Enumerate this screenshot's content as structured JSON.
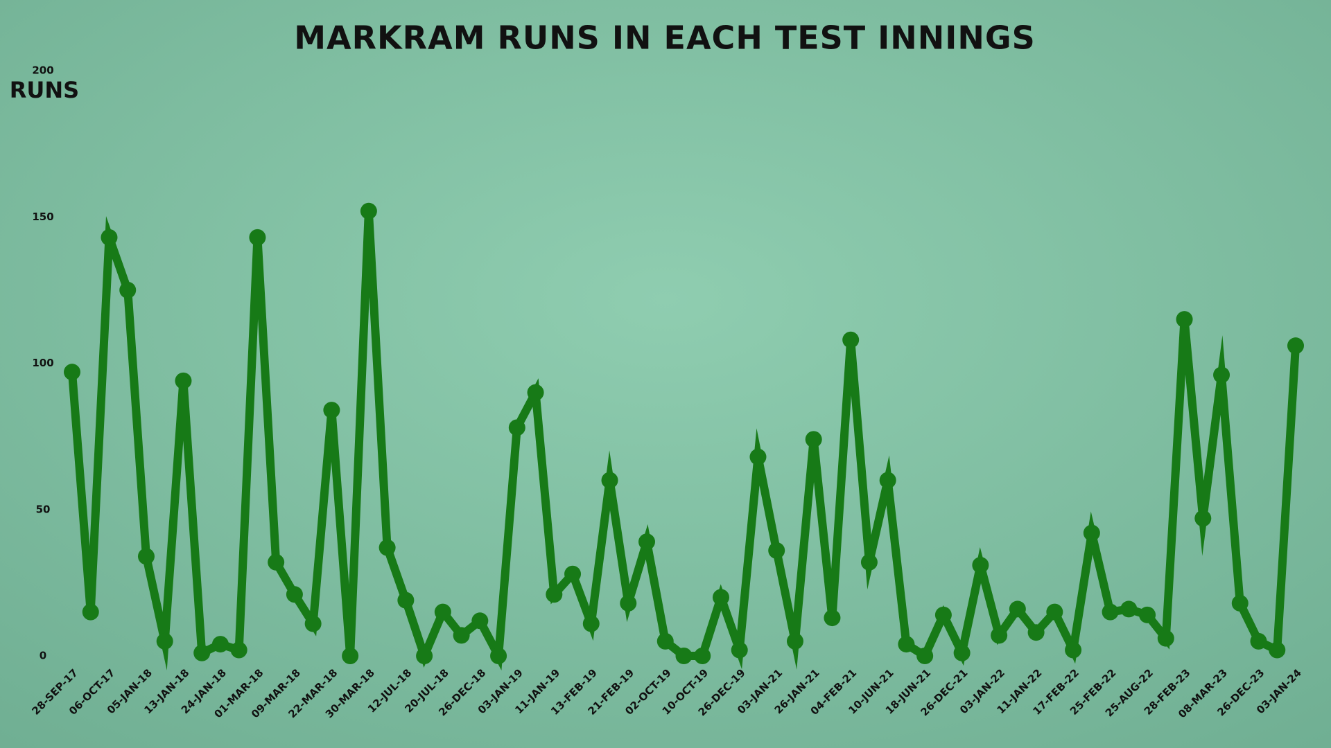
{
  "chart_data": {
    "type": "line",
    "title": "MARKRAM RUNS IN EACH TEST  INNINGS",
    "y_label": "RUNS",
    "categories": [
      "28-SEP-17",
      null,
      "06-OCT-17",
      null,
      "05-JAN-18",
      null,
      "13-JAN-18",
      null,
      "24-JAN-18",
      null,
      "01-MAR-18",
      null,
      "09-MAR-18",
      null,
      "22-MAR-18",
      null,
      "30-MAR-18",
      null,
      "12-JUL-18",
      null,
      "20-JUL-18",
      null,
      "26-DEC-18",
      null,
      "03-JAN-19",
      null,
      "11-JAN-19",
      null,
      "13-FEB-19",
      null,
      "21-FEB-19",
      null,
      "02-OCT-19",
      null,
      "10-OCT-19",
      null,
      "26-DEC-19",
      null,
      "03-JAN-21",
      null,
      "26-JAN-21",
      null,
      "04-FEB-21",
      null,
      "10-JUN-21",
      null,
      "18-JUN-21",
      null,
      "26-DEC-21",
      null,
      "03-JAN-22",
      null,
      "11-JAN-22",
      null,
      "17-FEB-22",
      null,
      "25-FEB-22",
      null,
      "25-AUG-22",
      null,
      "28-FEB-23",
      null,
      "08-MAR-23",
      null,
      "26-DEC-23",
      null,
      "03-JAN-24"
    ],
    "values": [
      97,
      15,
      143,
      125,
      34,
      5,
      94,
      1,
      4,
      2,
      143,
      32,
      21,
      11,
      84,
      0,
      152,
      37,
      19,
      0,
      15,
      7,
      12,
      0,
      78,
      90,
      21,
      28,
      11,
      60,
      18,
      39,
      5,
      0,
      0,
      20,
      2,
      68,
      36,
      5,
      74,
      13,
      108,
      32,
      60,
      4,
      0,
      14,
      1,
      31,
      7,
      16,
      8,
      15,
      2,
      42,
      15,
      16,
      14,
      6,
      115,
      47,
      96,
      18,
      5,
      2,
      106
    ],
    "color": "#177a17",
    "ylim": [
      0,
      200
    ],
    "yticks": [
      0,
      50,
      100,
      150,
      200
    ]
  }
}
